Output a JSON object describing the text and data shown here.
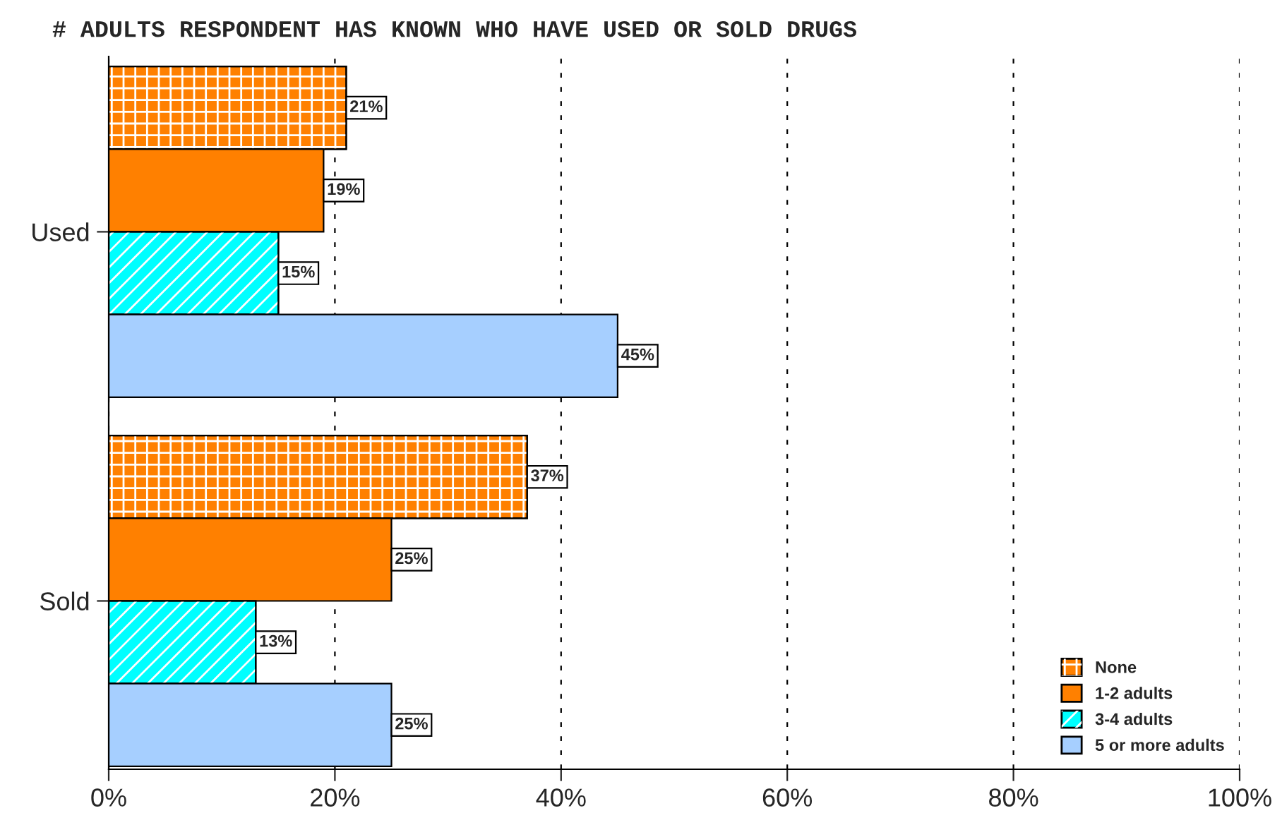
{
  "chart_data": {
    "type": "bar",
    "orientation": "horizontal",
    "title": "# ADULTS RESPONDENT HAS KNOWN WHO HAVE USED OR SOLD DRUGS",
    "categories": [
      "Used",
      "Sold"
    ],
    "series": [
      {
        "name": "None",
        "color": "#ff8000",
        "values": [
          21,
          37
        ],
        "value_labels": [
          "21%",
          "37%"
        ]
      },
      {
        "name": "1-2 adults",
        "color": "#ff8000",
        "values": [
          19,
          25
        ],
        "value_labels": [
          "19%",
          "25%"
        ]
      },
      {
        "name": "3-4 adults",
        "color": "#00ffff",
        "values": [
          15,
          13
        ],
        "value_labels": [
          "15%",
          "13%"
        ]
      },
      {
        "name": "5 or more adults",
        "color": "#a6cfff",
        "values": [
          45,
          25
        ],
        "value_labels": [
          "45%",
          "25%"
        ]
      }
    ],
    "xlim": [
      0,
      100
    ],
    "xticks": [
      {
        "value": 0,
        "label": "0%"
      },
      {
        "value": 20,
        "label": "20%"
      },
      {
        "value": 40,
        "label": "40%"
      },
      {
        "value": 60,
        "label": "60%"
      },
      {
        "value": 80,
        "label": "80%"
      },
      {
        "value": 100,
        "label": "100%"
      }
    ],
    "grid": "x",
    "legend": "bottom right"
  }
}
